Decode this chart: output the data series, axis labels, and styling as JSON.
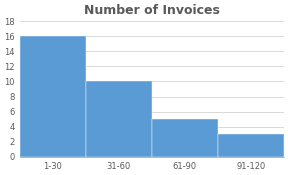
{
  "categories": [
    "1-30",
    "31-60",
    "61-90",
    "91-120"
  ],
  "values": [
    16,
    10,
    5,
    3
  ],
  "bar_color": "#5B9BD5",
  "title": "Number of Invoices",
  "title_fontsize": 9,
  "ylim": [
    0,
    18
  ],
  "yticks": [
    0,
    2,
    4,
    6,
    8,
    10,
    12,
    14,
    16,
    18
  ],
  "tick_fontsize": 6,
  "background_color": "#FFFFFF",
  "plot_bg_color": "#FFFFFF",
  "grid_color": "#D9D9D9",
  "title_color": "#595959"
}
